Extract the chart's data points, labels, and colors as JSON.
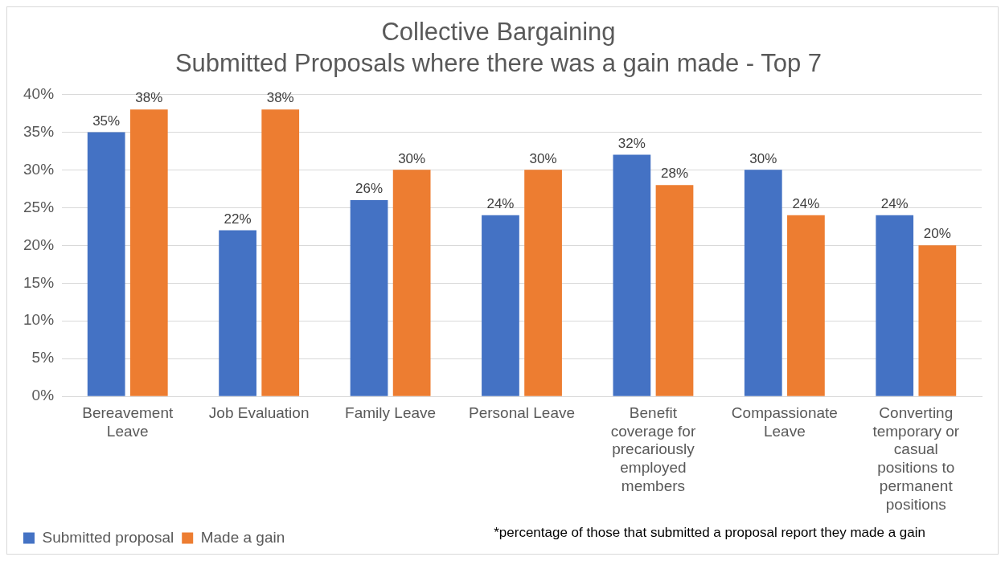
{
  "chart_data": {
    "type": "bar",
    "title": "Collective Bargaining",
    "subtitle": "Submitted Proposals where there was a gain made - Top 7",
    "categories": [
      "Bereavement Leave",
      "Job Evaluation",
      "Family Leave",
      "Personal Leave",
      "Benefit coverage for precariously employed members",
      "Compassionate Leave",
      "Converting temporary or casual positions to permanent positions"
    ],
    "series": [
      {
        "name": "Submitted proposal",
        "color": "#4472c4",
        "values": [
          35,
          22,
          26,
          24,
          32,
          30,
          24
        ],
        "value_labels": [
          "35%",
          "22%",
          "26%",
          "24%",
          "32%",
          "30%",
          "24%"
        ]
      },
      {
        "name": "Made a gain",
        "color": "#ed7d31",
        "values": [
          38,
          38,
          30,
          30,
          28,
          24,
          20
        ],
        "value_labels": [
          "38%",
          "38%",
          "30%",
          "30%",
          "28%",
          "24%",
          "20%"
        ]
      }
    ],
    "ylim": [
      0,
      40
    ],
    "yticks": [
      {
        "value": 0,
        "label": "0%"
      },
      {
        "value": 5,
        "label": "5%"
      },
      {
        "value": 10,
        "label": "10%"
      },
      {
        "value": 15,
        "label": "15%"
      },
      {
        "value": 20,
        "label": "20%"
      },
      {
        "value": 25,
        "label": "25%"
      },
      {
        "value": 30,
        "label": "30%"
      },
      {
        "value": 35,
        "label": "35%"
      },
      {
        "value": 40,
        "label": "40%"
      }
    ],
    "grid": "y",
    "legend": "bottom left",
    "annotations": [
      "*percentage of those that submitted a proposal report they made a gain"
    ]
  }
}
